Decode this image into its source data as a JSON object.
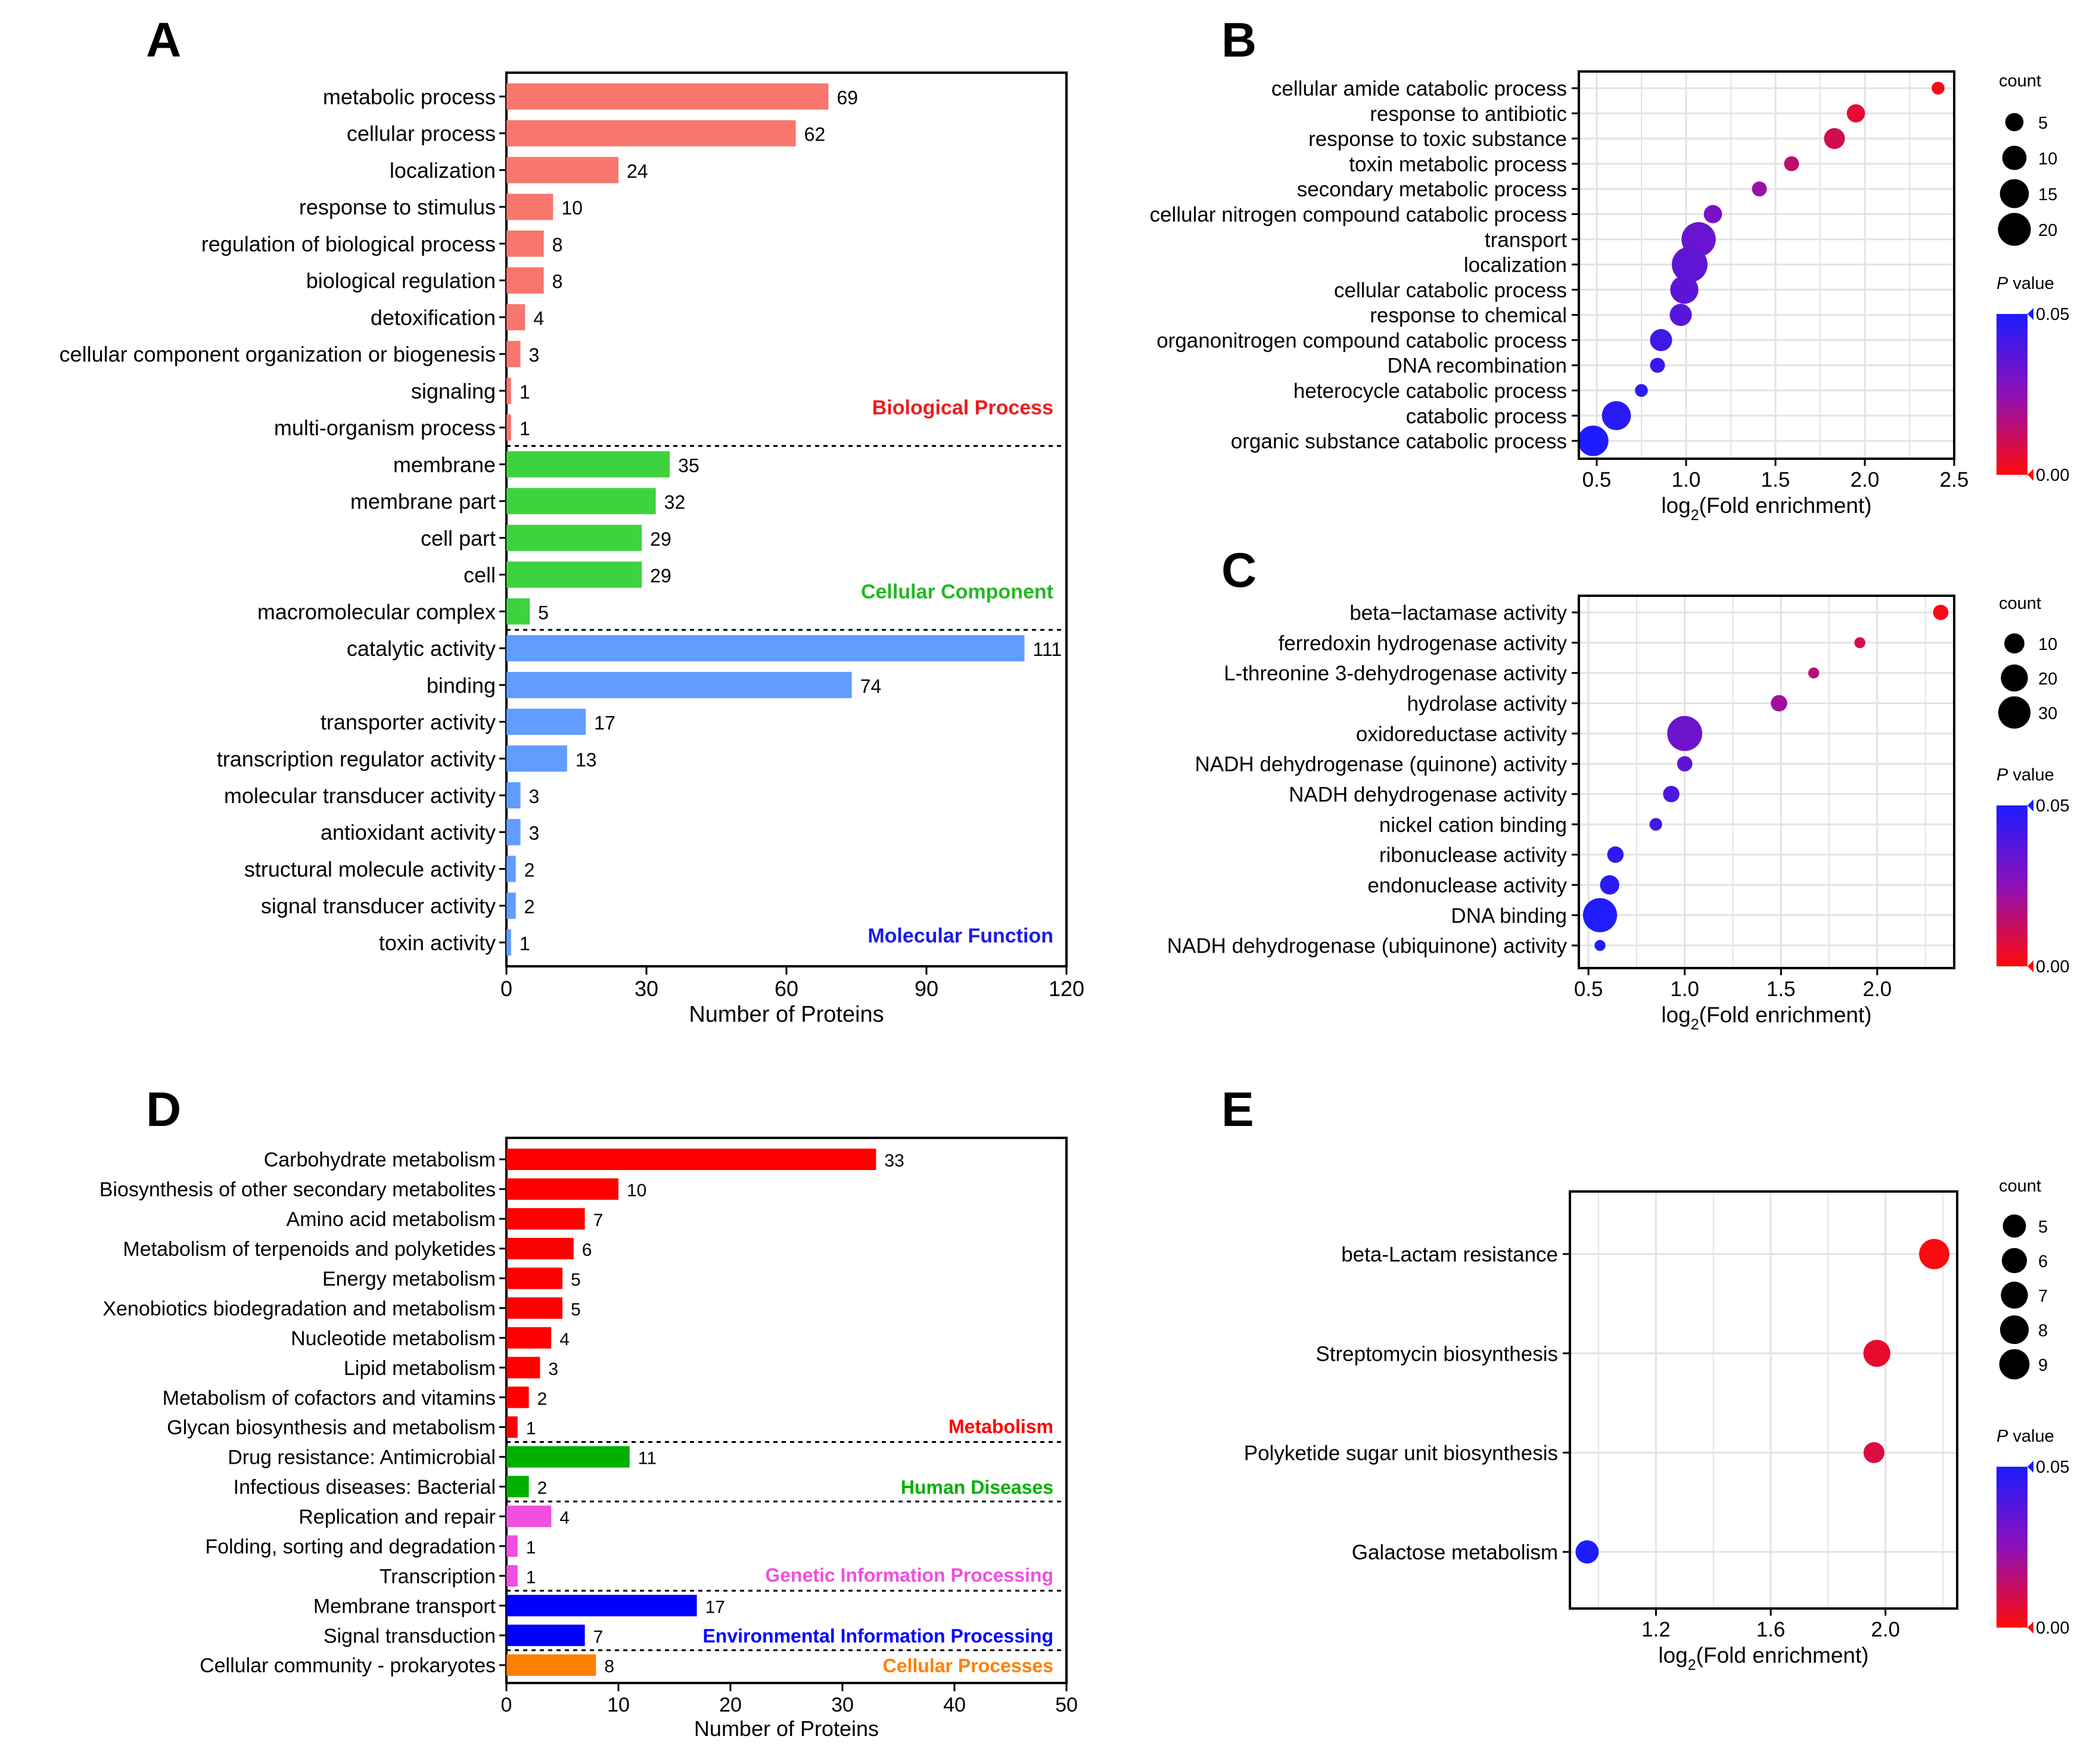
{
  "colors": {
    "bp": "#F8766D",
    "cc": "#3ED33E",
    "mf": "#619CFF",
    "bp_label": "#EE1C1C",
    "cc_label": "#22B922",
    "mf_label": "#1B1BE8",
    "kegg_metabolism": "#FF0000",
    "kegg_human": "#00B000",
    "kegg_genetic": "#F04FE0",
    "kegg_env": "#0000FF",
    "kegg_cellular": "#FF7F00",
    "grad_top": "#1C1CFF",
    "grad_mid": "#8E10B8",
    "grad_bottom": "#FF0A0A",
    "grid": "#E3E3E3"
  },
  "panel_labels": {
    "a": "A",
    "b": "B",
    "c": "C",
    "d": "D",
    "e": "E"
  },
  "chart_data": [
    {
      "id": "A",
      "type": "bar",
      "orientation": "horizontal",
      "xlabel": "Number of Proteins",
      "xlim": [
        0,
        120
      ],
      "xticks": [
        0,
        30,
        60,
        90,
        120
      ],
      "groups": [
        {
          "name": "Biological Process",
          "color_key": "bp",
          "label_color_key": "bp_label",
          "categories": [
            "metabolic process",
            "cellular process",
            "localization",
            "response to stimulus",
            "regulation of biological process",
            "biological regulation",
            "detoxification",
            "cellular component organization or biogenesis",
            "signaling",
            "multi-organism process"
          ],
          "values": [
            69,
            62,
            24,
            10,
            8,
            8,
            4,
            3,
            1,
            1
          ]
        },
        {
          "name": "Cellular Component",
          "color_key": "cc",
          "label_color_key": "cc_label",
          "categories": [
            "membrane",
            "membrane part",
            "cell part",
            "cell",
            "macromolecular complex"
          ],
          "values": [
            35,
            32,
            29,
            29,
            5
          ]
        },
        {
          "name": "Molecular Function",
          "color_key": "mf",
          "label_color_key": "mf_label",
          "categories": [
            "catalytic activity",
            "binding",
            "transporter activity",
            "transcription regulator activity",
            "molecular transducer activity",
            "antioxidant activity",
            "structural molecule activity",
            "signal transducer activity",
            "toxin activity"
          ],
          "values": [
            111,
            74,
            17,
            13,
            3,
            3,
            2,
            2,
            1
          ]
        }
      ]
    },
    {
      "id": "B",
      "type": "scatter",
      "xlabel_prefix": "log",
      "xlabel_sub": "2",
      "xlabel_suffix": "(Fold enrichment)",
      "xlim": [
        0.4,
        2.5
      ],
      "xticks": [
        0.5,
        1.0,
        1.5,
        2.0,
        2.5
      ],
      "xtick_labels": [
        "0.5",
        "1.0",
        "1.5",
        "2.0",
        "2.5"
      ],
      "points": [
        {
          "term": "cellular amide catabolic process",
          "x": 2.41,
          "count": 2,
          "p": 0.001
        },
        {
          "term": "response to antibiotic",
          "x": 1.95,
          "count": 5,
          "p": 0.006
        },
        {
          "term": "response to toxic substance",
          "x": 1.83,
          "count": 7,
          "p": 0.01
        },
        {
          "term": "toxin metabolic process",
          "x": 1.59,
          "count": 3,
          "p": 0.015
        },
        {
          "term": "secondary metabolic process",
          "x": 1.41,
          "count": 3,
          "p": 0.022
        },
        {
          "term": "cellular nitrogen compound catabolic process",
          "x": 1.15,
          "count": 5,
          "p": 0.03
        },
        {
          "term": "transport",
          "x": 1.07,
          "count": 22,
          "p": 0.033
        },
        {
          "term": "localization",
          "x": 1.02,
          "count": 24,
          "p": 0.035
        },
        {
          "term": "cellular catabolic process",
          "x": 0.99,
          "count": 14,
          "p": 0.036
        },
        {
          "term": "response to chemical",
          "x": 0.97,
          "count": 8,
          "p": 0.037
        },
        {
          "term": "organonitrogen compound catabolic process",
          "x": 0.86,
          "count": 8,
          "p": 0.042
        },
        {
          "term": "DNA recombination",
          "x": 0.84,
          "count": 3,
          "p": 0.044
        },
        {
          "term": "heterocycle catabolic process",
          "x": 0.75,
          "count": 2,
          "p": 0.046
        },
        {
          "term": "catabolic process",
          "x": 0.61,
          "count": 15,
          "p": 0.047
        },
        {
          "term": "organic substance catabolic process",
          "x": 0.48,
          "count": 17,
          "p": 0.05
        }
      ],
      "size_legend": {
        "title": "count",
        "values": [
          5,
          10,
          15,
          20
        ]
      },
      "color_legend": {
        "title_italic": "P",
        "title_rest": " value",
        "max_label": "0.05",
        "min_label": "0.00",
        "min": 0,
        "max": 0.05
      }
    },
    {
      "id": "C",
      "type": "scatter",
      "xlabel_prefix": "log",
      "xlabel_sub": "2",
      "xlabel_suffix": "(Fold enrichment)",
      "xlim": [
        0.45,
        2.4
      ],
      "xticks": [
        0.5,
        1.0,
        1.5,
        2.0
      ],
      "xtick_labels": [
        "0.5",
        "1.0",
        "1.5",
        "2.0"
      ],
      "points": [
        {
          "term": "beta−lactamase activity",
          "x": 2.33,
          "count": 5,
          "p": 0.002
        },
        {
          "term": "ferredoxin hydrogenase activity",
          "x": 1.91,
          "count": 2,
          "p": 0.01
        },
        {
          "term": "L-threonine 3-dehydrogenase activity",
          "x": 1.67,
          "count": 2,
          "p": 0.016
        },
        {
          "term": "hydrolase activity",
          "x": 1.49,
          "count": 6,
          "p": 0.021
        },
        {
          "term": "oxidoreductase activity",
          "x": 1.0,
          "count": 36,
          "p": 0.032
        },
        {
          "term": "NADH dehydrogenase (quinone) activity",
          "x": 1.0,
          "count": 5,
          "p": 0.036
        },
        {
          "term": "NADH dehydrogenase activity",
          "x": 0.93,
          "count": 6,
          "p": 0.039
        },
        {
          "term": "nickel cation binding",
          "x": 0.85,
          "count": 3,
          "p": 0.042
        },
        {
          "term": "ribonuclease activity",
          "x": 0.64,
          "count": 6,
          "p": 0.046
        },
        {
          "term": "endonuclease activity",
          "x": 0.61,
          "count": 9,
          "p": 0.047
        },
        {
          "term": "DNA binding",
          "x": 0.56,
          "count": 34,
          "p": 0.049
        },
        {
          "term": "NADH dehydrogenase (ubiquinone) activity",
          "x": 0.56,
          "count": 2,
          "p": 0.05
        }
      ],
      "size_legend": {
        "title": "count",
        "values": [
          10,
          20,
          30
        ]
      },
      "color_legend": {
        "title_italic": "P",
        "title_rest": " value",
        "max_label": "0.05",
        "min_label": "0.00",
        "min": 0,
        "max": 0.05
      }
    },
    {
      "id": "D",
      "type": "bar",
      "orientation": "horizontal",
      "xlabel": "Number of Proteins",
      "xlim": [
        0,
        50
      ],
      "xticks": [
        0,
        10,
        20,
        30,
        40,
        50
      ],
      "groups": [
        {
          "name": "Metabolism",
          "color_key": "kegg_metabolism",
          "label_color_key": "kegg_metabolism",
          "categories": [
            "Carbohydrate metabolism",
            "Biosynthesis of other secondary metabolites",
            "Amino acid metabolism",
            "Metabolism of terpenoids and polyketides",
            "Energy metabolism",
            "Xenobiotics biodegradation and metabolism",
            "Nucleotide metabolism",
            "Lipid metabolism",
            "Metabolism of cofactors and vitamins",
            "Glycan biosynthesis and metabolism"
          ],
          "values": [
            33,
            10,
            7,
            6,
            5,
            5,
            4,
            3,
            2,
            1
          ]
        },
        {
          "name": "Human Diseases",
          "color_key": "kegg_human",
          "label_color_key": "kegg_human",
          "categories": [
            "Drug resistance: Antimicrobial",
            "Infectious diseases: Bacterial"
          ],
          "values": [
            11,
            2
          ]
        },
        {
          "name": "Genetic Information Processing",
          "color_key": "kegg_genetic",
          "label_color_key": "kegg_genetic",
          "categories": [
            "Replication and repair",
            "Folding, sorting and degradation",
            "Transcription"
          ],
          "values": [
            4,
            1,
            1
          ]
        },
        {
          "name": "Environmental Information Processing",
          "color_key": "kegg_env",
          "label_color_key": "kegg_env",
          "categories": [
            "Membrane transport",
            "Signal transduction"
          ],
          "values": [
            17,
            7
          ]
        },
        {
          "name": "Cellular Processes",
          "color_key": "kegg_cellular",
          "label_color_key": "kegg_cellular",
          "categories": [
            "Cellular community - prokaryotes"
          ],
          "values": [
            8
          ]
        }
      ]
    },
    {
      "id": "E",
      "type": "scatter",
      "xlabel_prefix": "log",
      "xlabel_sub": "2",
      "xlabel_suffix": "(Fold enrichment)",
      "xlim": [
        0.9,
        2.25
      ],
      "xticks": [
        1.2,
        1.6,
        2.0
      ],
      "xtick_labels": [
        "1.2",
        "1.6",
        "2.0"
      ],
      "points": [
        {
          "term": "beta-Lactam resistance",
          "x": 2.17,
          "count": 9,
          "p": 0.001
        },
        {
          "term": "Streptomycin biosynthesis",
          "x": 1.97,
          "count": 7,
          "p": 0.005
        },
        {
          "term": "Polyketide sugar unit biosynthesis",
          "x": 1.96,
          "count": 4,
          "p": 0.008
        },
        {
          "term": "Galactose metabolism",
          "x": 0.96,
          "count": 5,
          "p": 0.05
        }
      ],
      "size_legend": {
        "title": "count",
        "values": [
          5,
          6,
          7,
          8,
          9
        ]
      },
      "color_legend": {
        "title_italic": "P",
        "title_rest": " value",
        "max_label": "0.05",
        "min_label": "0.00",
        "min": 0,
        "max": 0.05
      }
    }
  ]
}
